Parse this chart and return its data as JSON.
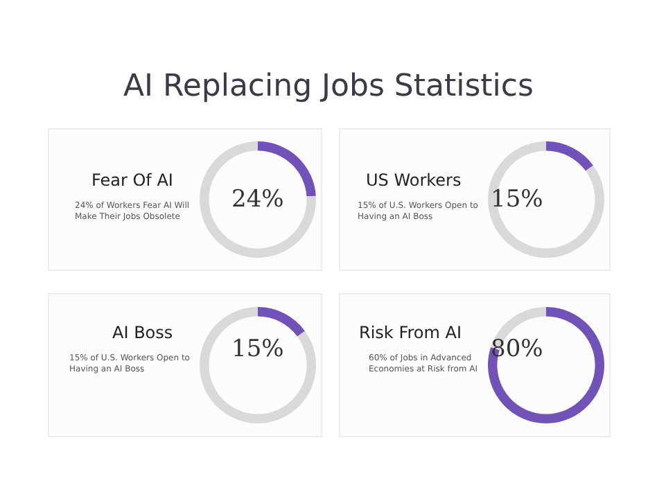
{
  "chart_data": [
    {
      "type": "other",
      "title": "AI Replacing Jobs Statistics"
    },
    {
      "type": "donut",
      "title": "Fear Of AI",
      "subtitle": "24% of Workers Fear AI Will Make Their Jobs Obsolete",
      "categories": [
        null,
        null
      ],
      "values": [
        24,
        76
      ],
      "colors": [
        "#7152b8",
        "#d9d9d9"
      ],
      "annotations": [
        "24%"
      ]
    },
    {
      "type": "donut",
      "title": "US Workers",
      "subtitle": "15% of U.S. Workers Open to Having an AI Boss",
      "categories": [
        null,
        null
      ],
      "values": [
        15,
        85
      ],
      "colors": [
        "#7152b8",
        "#d9d9d9"
      ],
      "annotations": [
        "15%"
      ]
    },
    {
      "type": "donut",
      "title": "AI Boss",
      "subtitle": "15% of U.S. Workers Open to Having an AI Boss",
      "categories": [
        null,
        null
      ],
      "values": [
        15,
        85
      ],
      "colors": [
        "#7152b8",
        "#d9d9d9"
      ],
      "annotations": [
        "15%"
      ]
    },
    {
      "type": "donut",
      "title": "Risk From AI",
      "subtitle": "60% of Jobs in Advanced Economies at Risk from AI",
      "categories": [
        null,
        null
      ],
      "values": [
        80,
        20
      ],
      "colors": [
        "#7152b8",
        "#d9d9d9"
      ],
      "annotations": [
        "80%"
      ]
    }
  ]
}
